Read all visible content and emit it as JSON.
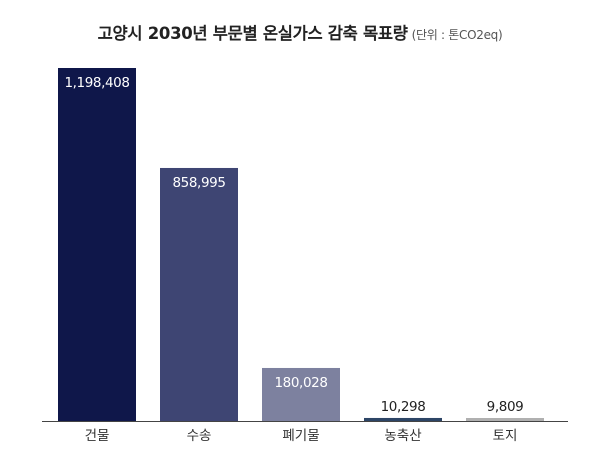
{
  "chart_data": {
    "type": "bar",
    "title": "고양시 2030년 부문별 온실가스 감축 목표량",
    "unit": "(단위 : 톤CO2eq)",
    "categories": [
      "건물",
      "수송",
      "폐기물",
      "농축산",
      "토지"
    ],
    "values": [
      1198408,
      858995,
      180028,
      10298,
      9809
    ],
    "value_labels": [
      "1,198,408",
      "858,995",
      "180,028",
      "10,298",
      "9,809"
    ],
    "colors": [
      "#0f174a",
      "#3e4573",
      "#7d819f",
      "#2d4566",
      "#b0b0b0"
    ],
    "ylim": [
      0,
      1198408
    ],
    "grid": false,
    "legend": "none"
  }
}
